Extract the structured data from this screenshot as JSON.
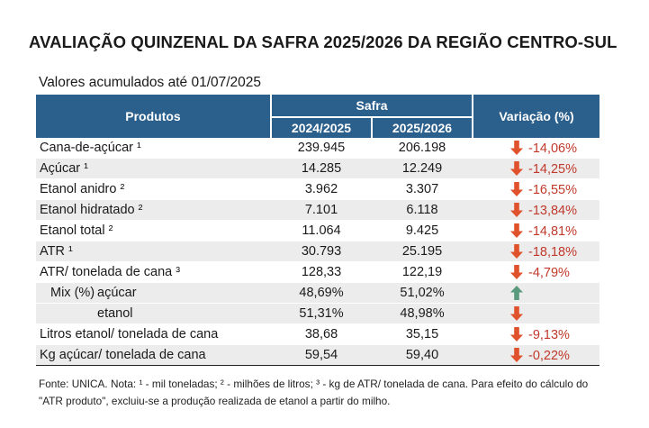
{
  "title": "AVALIAÇÃO QUINZENAL DA SAFRA 2025/2026 DA REGIÃO CENTRO-SUL",
  "subtitle": "Valores acumulados até 01/07/2025",
  "header": {
    "produtos": "Produtos",
    "safra": "Safra",
    "year1": "2024/2025",
    "year2": "2025/2026",
    "variacao": "Variação (%)"
  },
  "colors": {
    "header_bg": "#2b5f8c",
    "down_arrow": "#e0522b",
    "up_arrow": "#5a9a7d",
    "negative_text": "#c0392b",
    "shaded_row": "#ececec"
  },
  "rows": [
    {
      "name": "Cana-de-açúcar ¹",
      "v1": "239.945",
      "v2": "206.198",
      "var": "-14,06%",
      "arrow": "down-arrow-icon"
    },
    {
      "name": "Açúcar ¹",
      "v1": "14.285",
      "v2": "12.249",
      "var": "-14,25%",
      "arrow": "down-arrow-icon"
    },
    {
      "name": "Etanol anidro ²",
      "v1": "3.962",
      "v2": "3.307",
      "var": "-16,55%",
      "arrow": "down-arrow-icon"
    },
    {
      "name": "Etanol hidratado ²",
      "v1": "7.101",
      "v2": "6.118",
      "var": "-13,84%",
      "arrow": "down-arrow-icon"
    },
    {
      "name": "Etanol total ²",
      "v1": "11.064",
      "v2": "9.425",
      "var": "-14,81%",
      "arrow": "down-arrow-icon"
    },
    {
      "name": "ATR ¹",
      "v1": "30.793",
      "v2": "25.195",
      "var": "-18,18%",
      "arrow": "down-arrow-icon"
    },
    {
      "name": "ATR/ tonelada de cana ³",
      "v1": "128,33",
      "v2": "122,19",
      "var": "-4,79%",
      "arrow": "down-arrow-icon"
    }
  ],
  "mix": {
    "label": "Mix (%)",
    "acucar": {
      "name": "açúcar",
      "v1": "48,69%",
      "v2": "51,02%",
      "arrow": "up-arrow-icon"
    },
    "etanol": {
      "name": "etanol",
      "v1": "51,31%",
      "v2": "48,98%",
      "arrow": "down-arrow-icon"
    }
  },
  "rows_after": [
    {
      "name": "Litros etanol/ tonelada de cana",
      "v1": "38,68",
      "v2": "35,15",
      "var": "-9,13%",
      "arrow": "down-arrow-icon"
    },
    {
      "name": "Kg açúcar/ tonelada de cana",
      "v1": "59,54",
      "v2": "59,40",
      "var": "-0,22%",
      "arrow": "down-arrow-icon"
    }
  ],
  "footnote": "Fonte: UNICA. Nota: ¹ - mil toneladas; ² - milhões de litros; ³ - kg de ATR/ tonelada de cana. Para efeito do cálculo do \"ATR produto\", excluiu-se a produção realizada de etanol a partir do milho."
}
